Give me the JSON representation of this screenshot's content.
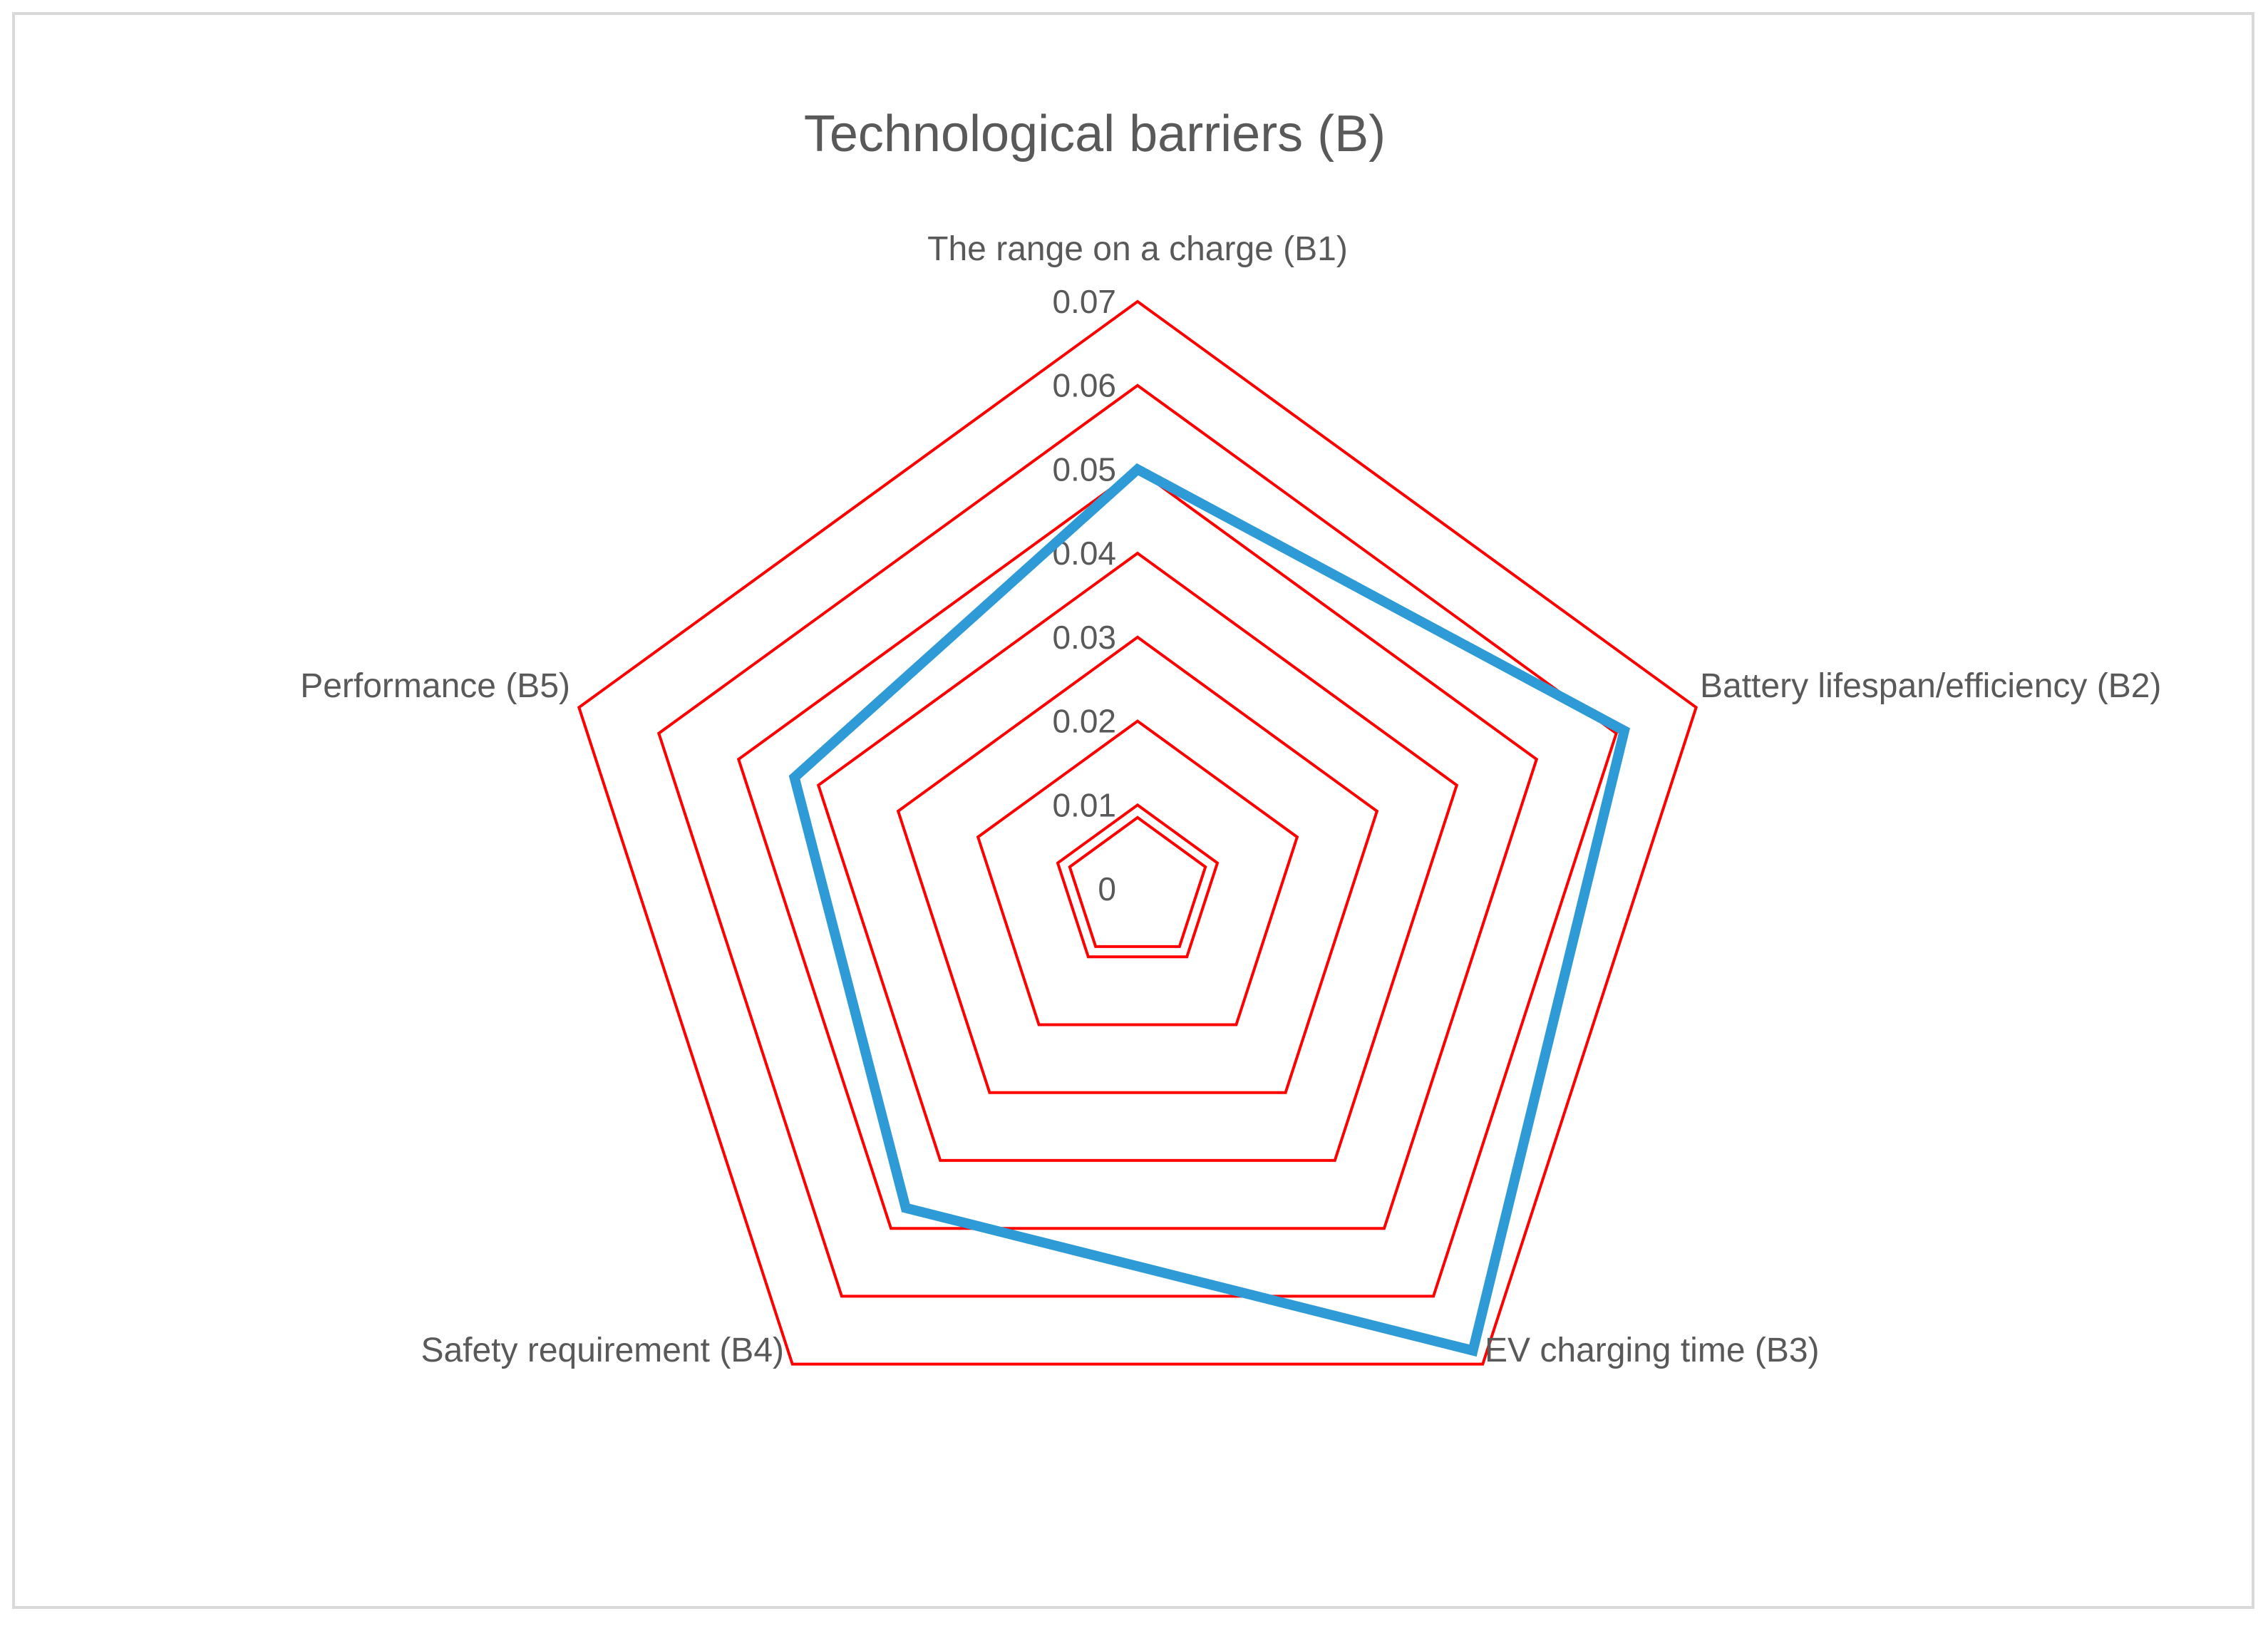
{
  "chart_data": {
    "type": "radar",
    "title": "Technological barriers (B)",
    "axes": [
      "The range on a charge (B1)",
      "Battery lifespan/efficiency (B2)",
      "EV charging time (B3)",
      "Safety requirement (B4)",
      "Performance (B5)"
    ],
    "tick_labels": [
      "0",
      "0.01",
      "0.02",
      "0.03",
      "0.04",
      "0.05",
      "0.06",
      "0.07"
    ],
    "rlim": [
      0,
      0.07
    ],
    "series": [
      {
        "values": [
          0.05,
          0.061,
          0.068,
          0.047,
          0.043
        ],
        "color": "#2e9bd6"
      }
    ],
    "grid_color": "#ff0000",
    "grid": true
  }
}
